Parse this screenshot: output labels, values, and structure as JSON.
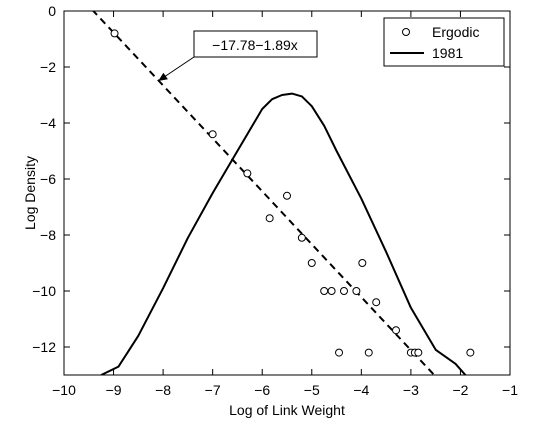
{
  "chart_data": {
    "type": "scatter",
    "xlabel": "Log of Link Weight",
    "ylabel": "Log Density",
    "xlim": [
      -10,
      -1
    ],
    "ylim": [
      -13,
      0
    ],
    "xticks": [
      -10,
      -9,
      -8,
      -7,
      -6,
      -5,
      -4,
      -3,
      -2,
      -1
    ],
    "yticks": [
      0,
      -2,
      -4,
      -6,
      -8,
      -10,
      -12
    ],
    "grid": false,
    "legend_position": "top-right",
    "series": [
      {
        "name": "Ergodic",
        "kind": "markers",
        "marker": "open-circle",
        "points": [
          [
            -8.98,
            -0.8
          ],
          [
            -7.0,
            -4.4
          ],
          [
            -6.3,
            -5.8
          ],
          [
            -5.5,
            -6.6
          ],
          [
            -5.85,
            -7.4
          ],
          [
            -5.2,
            -8.1
          ],
          [
            -5.0,
            -9.0
          ],
          [
            -4.75,
            -10.0
          ],
          [
            -4.6,
            -10.0
          ],
          [
            -4.35,
            -10.0
          ],
          [
            -4.1,
            -10.0
          ],
          [
            -3.98,
            -9.0
          ],
          [
            -3.7,
            -10.4
          ],
          [
            -3.3,
            -11.4
          ],
          [
            -4.45,
            -12.2
          ],
          [
            -3.85,
            -12.2
          ],
          [
            -3.0,
            -12.2
          ],
          [
            -2.92,
            -12.2
          ],
          [
            -2.85,
            -12.2
          ],
          [
            -1.8,
            -12.2
          ]
        ]
      },
      {
        "name": "1981",
        "kind": "line",
        "style": "solid",
        "points": [
          [
            -9.25,
            -13.0
          ],
          [
            -8.9,
            -12.7
          ],
          [
            -8.5,
            -11.6
          ],
          [
            -8.0,
            -9.9
          ],
          [
            -7.5,
            -8.1
          ],
          [
            -7.0,
            -6.5
          ],
          [
            -6.5,
            -5.0
          ],
          [
            -6.2,
            -4.1
          ],
          [
            -6.0,
            -3.5
          ],
          [
            -5.8,
            -3.15
          ],
          [
            -5.6,
            -3.0
          ],
          [
            -5.4,
            -2.95
          ],
          [
            -5.2,
            -3.05
          ],
          [
            -5.0,
            -3.4
          ],
          [
            -4.75,
            -4.1
          ],
          [
            -4.5,
            -5.0
          ],
          [
            -4.0,
            -6.7
          ],
          [
            -3.5,
            -8.6
          ],
          [
            -3.0,
            -10.6
          ],
          [
            -2.5,
            -12.1
          ],
          [
            -2.1,
            -12.6
          ],
          [
            -1.9,
            -13.0
          ]
        ]
      },
      {
        "name": "",
        "kind": "fit-line",
        "style": "dashed",
        "intercept": -17.78,
        "slope": -1.89,
        "x_range": [
          -9.43,
          -2.53
        ]
      }
    ],
    "annotation": {
      "text": "−17.78−1.89x",
      "points_to": [
        -8.1,
        -2.5
      ]
    }
  }
}
